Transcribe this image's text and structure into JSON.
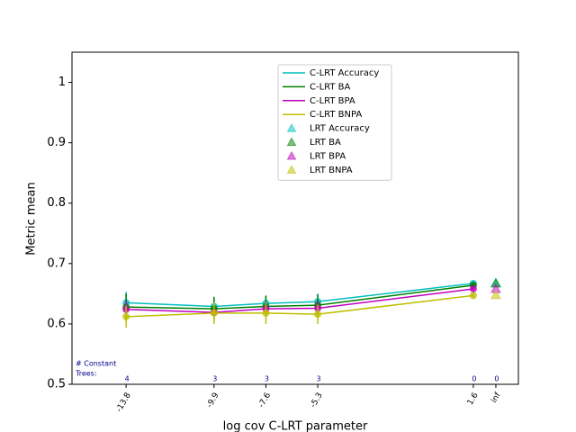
{
  "chart_data": {
    "type": "line",
    "xlabel": "log cov C-LRT parameter",
    "ylabel": "Metric mean",
    "x": [
      -13.8,
      -9.9,
      -7.6,
      -5.3,
      1.6
    ],
    "xlim": [
      -16.2,
      3.6
    ],
    "xticks": [
      -13.8,
      -9.9,
      -7.6,
      -5.3,
      1.6,
      {
        "value": 2.6,
        "label": "inf"
      }
    ],
    "ylim": [
      0.5,
      1.05
    ],
    "yticks": [
      0.5,
      0.6,
      0.7,
      0.8,
      0.9,
      1.0
    ],
    "legend": "upper center",
    "series": [
      {
        "name": "C-LRT Accuracy",
        "color": "#00bfbf",
        "values": [
          0.635,
          0.629,
          0.634,
          0.637,
          0.667
        ],
        "errors": [
          0.018,
          0.012,
          0.012,
          0.013,
          0.004
        ]
      },
      {
        "name": "C-LRT BA",
        "color": "#008000",
        "values": [
          0.628,
          0.625,
          0.629,
          0.631,
          0.664
        ],
        "errors": [
          0.022,
          0.02,
          0.018,
          0.018,
          0.004
        ]
      },
      {
        "name": "C-LRT BPA",
        "color": "#bf00bf",
        "values": [
          0.624,
          0.619,
          0.625,
          0.626,
          0.658
        ],
        "errors": [
          0.014,
          0.012,
          0.012,
          0.012,
          0.004
        ]
      },
      {
        "name": "C-LRT BNPA",
        "color": "#bfbf00",
        "values": [
          0.612,
          0.618,
          0.618,
          0.616,
          0.647
        ],
        "errors": [
          0.018,
          0.018,
          0.018,
          0.016,
          0.004
        ]
      }
    ],
    "scatter_series": [
      {
        "name": "LRT Accuracy",
        "color": "#00bfbf",
        "x": [
          2.6
        ],
        "values": [
          0.668
        ]
      },
      {
        "name": "LRT BA",
        "color": "#008000",
        "x": [
          2.6
        ],
        "values": [
          0.667
        ]
      },
      {
        "name": "LRT BPA",
        "color": "#bf00bf",
        "x": [
          2.6
        ],
        "values": [
          0.658
        ]
      },
      {
        "name": "LRT BNPA",
        "color": "#bfbf00",
        "x": [
          2.6
        ],
        "values": [
          0.648
        ]
      }
    ],
    "constant_trees": {
      "label": [
        "# Constant",
        "Trees:"
      ],
      "color": "#00008b",
      "counts": [
        4,
        3,
        3,
        3,
        0,
        0
      ]
    }
  }
}
